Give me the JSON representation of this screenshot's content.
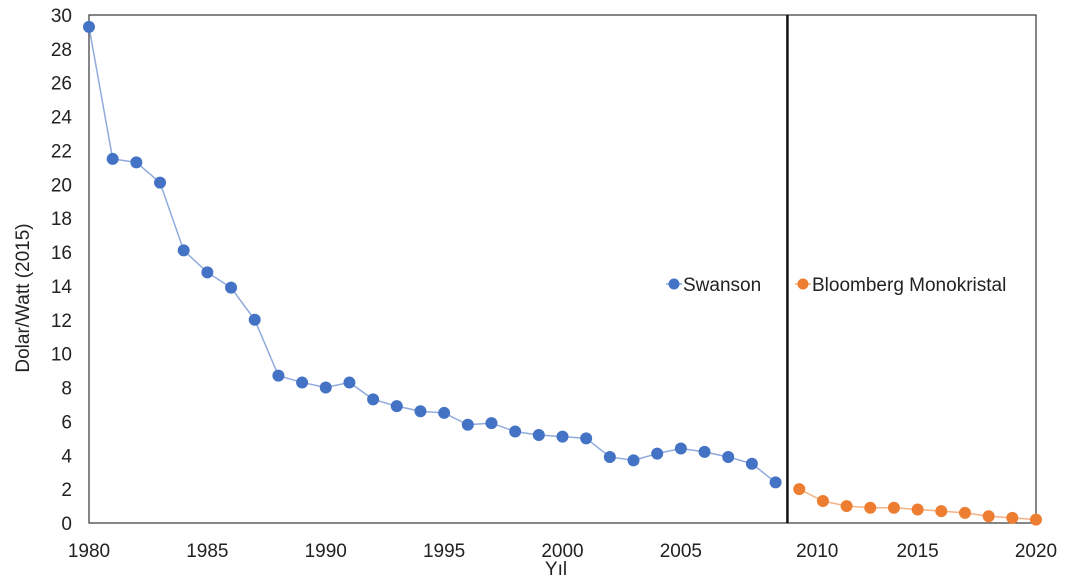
{
  "chart_data": {
    "type": "line",
    "title": "",
    "xlabel": "Yıl",
    "ylabel": "Dolar/Watt (2015)",
    "xlim": [
      1980,
      2020
    ],
    "ylim": [
      0,
      30
    ],
    "x_ticks": [
      1980,
      1985,
      1990,
      1995,
      2000,
      2005,
      2010,
      2015,
      2020
    ],
    "y_ticks": [
      0,
      2,
      4,
      6,
      8,
      10,
      12,
      14,
      16,
      18,
      20,
      22,
      24,
      26,
      28,
      30
    ],
    "grid": false,
    "legend_position": "center-right",
    "vertical_marker_x": 2009.5,
    "series": [
      {
        "name": "Swanson",
        "color": "#4472C4",
        "line_color": "#8FAADC",
        "x": [
          1980,
          1981,
          1982,
          1983,
          1984,
          1985,
          1986,
          1987,
          1988,
          1989,
          1990,
          1991,
          1992,
          1993,
          1994,
          1995,
          1996,
          1997,
          1998,
          1999,
          2000,
          2001,
          2002,
          2003,
          2004,
          2005,
          2006,
          2007,
          2008,
          2009
        ],
        "y": [
          29.3,
          21.5,
          21.3,
          20.1,
          16.1,
          14.8,
          13.9,
          12.0,
          8.7,
          8.3,
          8.0,
          8.3,
          7.3,
          6.9,
          6.6,
          6.5,
          5.8,
          5.9,
          5.4,
          5.2,
          5.1,
          5.0,
          3.9,
          3.7,
          4.1,
          4.4,
          4.2,
          3.9,
          3.5,
          2.4
        ]
      },
      {
        "name": "Bloomberg Monokristal",
        "color": "#ED7D31",
        "line_color": "#F4B183",
        "x": [
          2010,
          2011,
          2012,
          2013,
          2014,
          2015,
          2016,
          2017,
          2018,
          2019,
          2020
        ],
        "y": [
          2.0,
          1.3,
          1.0,
          0.9,
          0.9,
          0.8,
          0.7,
          0.6,
          0.4,
          0.3,
          0.2
        ]
      }
    ]
  }
}
